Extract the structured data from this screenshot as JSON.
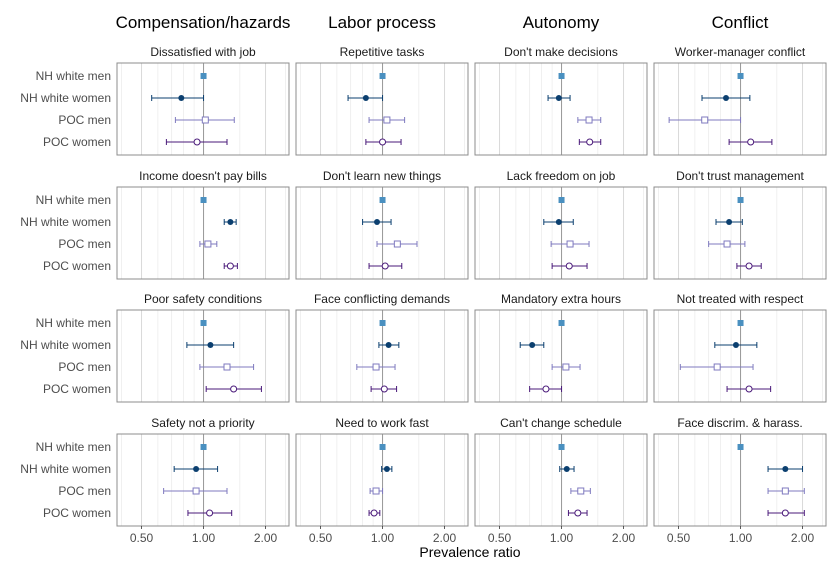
{
  "chart_data": {
    "type": "forest",
    "x_scale": "log",
    "xlim": [
      0.38,
      2.6
    ],
    "x_ticks": [
      0.5,
      1.0,
      2.0
    ],
    "x_tick_labels": [
      "0.50",
      "1.00",
      "2.00"
    ],
    "xlabel": "Prevalence ratio",
    "reference_line": 1.0,
    "grid": true,
    "legend": "none",
    "groups": [
      "NH white men",
      "NH white women",
      "POC men",
      "POC women"
    ],
    "colors": {
      "NH white men": "#4a90c0",
      "NH white women": "#0b3f6f",
      "POC men": "#7f7abf",
      "POC women": "#4a1a7a"
    },
    "markers": {
      "NH white men": "filled-square",
      "NH white women": "filled-circle",
      "POC men": "open-square",
      "POC women": "open-circle"
    },
    "columns": [
      "Compensation/hazards",
      "Labor process",
      "Autonomy",
      "Conflict"
    ],
    "panels": [
      [
        {
          "title": "Dissatisfied with job",
          "points": [
            {
              "est": 1.0
            },
            {
              "est": 0.78,
              "lo": 0.56,
              "hi": 1.0
            },
            {
              "est": 1.02,
              "lo": 0.73,
              "hi": 1.41
            },
            {
              "est": 0.93,
              "lo": 0.66,
              "hi": 1.3
            }
          ]
        },
        {
          "title": "Income doesn't pay bills",
          "points": [
            {
              "est": 1.0
            },
            {
              "est": 1.35,
              "lo": 1.26,
              "hi": 1.44
            },
            {
              "est": 1.05,
              "lo": 0.96,
              "hi": 1.16
            },
            {
              "est": 1.35,
              "lo": 1.26,
              "hi": 1.46
            }
          ]
        },
        {
          "title": "Poor safety conditions",
          "points": [
            {
              "est": 1.0
            },
            {
              "est": 1.08,
              "lo": 0.83,
              "hi": 1.4
            },
            {
              "est": 1.3,
              "lo": 0.96,
              "hi": 1.75
            },
            {
              "est": 1.4,
              "lo": 1.03,
              "hi": 1.91
            }
          ]
        },
        {
          "title": "Safety not a priority",
          "points": [
            {
              "est": 1.0
            },
            {
              "est": 0.92,
              "lo": 0.72,
              "hi": 1.17
            },
            {
              "est": 0.92,
              "lo": 0.64,
              "hi": 1.3
            },
            {
              "est": 1.07,
              "lo": 0.84,
              "hi": 1.37
            }
          ]
        }
      ],
      [
        {
          "title": "Repetitive tasks",
          "points": [
            {
              "est": 1.0
            },
            {
              "est": 0.83,
              "lo": 0.68,
              "hi": 1.0
            },
            {
              "est": 1.05,
              "lo": 0.86,
              "hi": 1.28
            },
            {
              "est": 1.0,
              "lo": 0.83,
              "hi": 1.23
            }
          ]
        },
        {
          "title": "Don't learn new things",
          "points": [
            {
              "est": 1.0
            },
            {
              "est": 0.94,
              "lo": 0.8,
              "hi": 1.1
            },
            {
              "est": 1.18,
              "lo": 0.94,
              "hi": 1.47
            },
            {
              "est": 1.03,
              "lo": 0.86,
              "hi": 1.24
            }
          ]
        },
        {
          "title": "Face conflicting demands",
          "points": [
            {
              "est": 1.0
            },
            {
              "est": 1.07,
              "lo": 0.96,
              "hi": 1.2
            },
            {
              "est": 0.93,
              "lo": 0.75,
              "hi": 1.15
            },
            {
              "est": 1.02,
              "lo": 0.88,
              "hi": 1.17
            }
          ]
        },
        {
          "title": "Need to work fast",
          "points": [
            {
              "est": 1.0
            },
            {
              "est": 1.05,
              "lo": 0.99,
              "hi": 1.11
            },
            {
              "est": 0.93,
              "lo": 0.87,
              "hi": 1.0
            },
            {
              "est": 0.91,
              "lo": 0.86,
              "hi": 0.97
            }
          ]
        }
      ],
      [
        {
          "title": "Don't make decisions",
          "points": [
            {
              "est": 1.0
            },
            {
              "est": 0.97,
              "lo": 0.86,
              "hi": 1.1
            },
            {
              "est": 1.36,
              "lo": 1.2,
              "hi": 1.55
            },
            {
              "est": 1.37,
              "lo": 1.22,
              "hi": 1.55
            }
          ]
        },
        {
          "title": "Lack freedom on job",
          "points": [
            {
              "est": 1.0
            },
            {
              "est": 0.97,
              "lo": 0.82,
              "hi": 1.14
            },
            {
              "est": 1.1,
              "lo": 0.89,
              "hi": 1.36
            },
            {
              "est": 1.09,
              "lo": 0.9,
              "hi": 1.33
            }
          ]
        },
        {
          "title": "Mandatory extra hours",
          "points": [
            {
              "est": 1.0
            },
            {
              "est": 0.72,
              "lo": 0.63,
              "hi": 0.82
            },
            {
              "est": 1.05,
              "lo": 0.9,
              "hi": 1.23
            },
            {
              "est": 0.84,
              "lo": 0.7,
              "hi": 1.0
            }
          ]
        },
        {
          "title": "Can't change schedule",
          "points": [
            {
              "est": 1.0
            },
            {
              "est": 1.06,
              "lo": 0.98,
              "hi": 1.15
            },
            {
              "est": 1.24,
              "lo": 1.11,
              "hi": 1.38
            },
            {
              "est": 1.2,
              "lo": 1.08,
              "hi": 1.33
            }
          ]
        }
      ],
      [
        {
          "title": "Worker-manager conflict",
          "points": [
            {
              "est": 1.0
            },
            {
              "est": 0.85,
              "lo": 0.65,
              "hi": 1.11
            },
            {
              "est": 0.67,
              "lo": 0.45,
              "hi": 1.0
            },
            {
              "est": 1.12,
              "lo": 0.88,
              "hi": 1.42
            }
          ]
        },
        {
          "title": "Don't trust management",
          "points": [
            {
              "est": 1.0
            },
            {
              "est": 0.88,
              "lo": 0.76,
              "hi": 1.02
            },
            {
              "est": 0.86,
              "lo": 0.7,
              "hi": 1.05
            },
            {
              "est": 1.1,
              "lo": 0.96,
              "hi": 1.26
            }
          ]
        },
        {
          "title": "Not treated with respect",
          "points": [
            {
              "est": 1.0
            },
            {
              "est": 0.95,
              "lo": 0.75,
              "hi": 1.2
            },
            {
              "est": 0.77,
              "lo": 0.51,
              "hi": 1.15
            },
            {
              "est": 1.1,
              "lo": 0.86,
              "hi": 1.4
            }
          ]
        },
        {
          "title": "Face discrim. & harass.",
          "points": [
            {
              "est": 1.0
            },
            {
              "est": 1.65,
              "lo": 1.36,
              "hi": 2.0
            },
            {
              "est": 1.65,
              "lo": 1.36,
              "hi": 2.04
            },
            {
              "est": 1.65,
              "lo": 1.36,
              "hi": 2.04
            }
          ]
        }
      ]
    ]
  }
}
